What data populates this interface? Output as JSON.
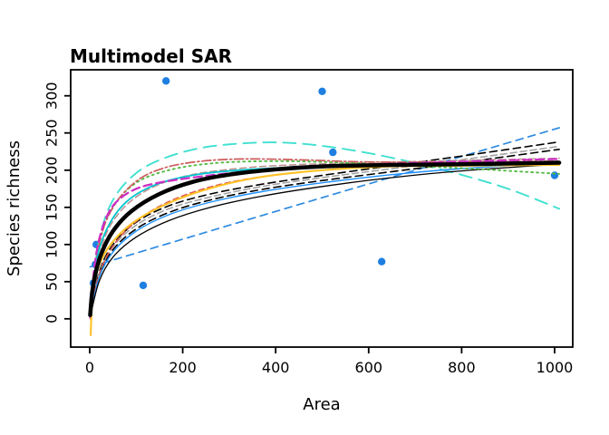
{
  "figure": {
    "window_background": "#FFFFFF",
    "frame_color": "#000000"
  },
  "chart_data": {
    "type": "line",
    "title": "Multimodel SAR",
    "xlabel": "Area",
    "ylabel": "Species richness",
    "xlim": [
      -41,
      1039
    ],
    "ylim": [
      -38,
      335
    ],
    "x_ticks": [
      0,
      200,
      400,
      600,
      800,
      1000
    ],
    "y_ticks": [
      0,
      50,
      100,
      150,
      200,
      250,
      300
    ],
    "grid": false,
    "legend": "none",
    "points": {
      "marker": "filled-circle",
      "color": "#1E7FE0",
      "radius": 4.2,
      "data": [
        [
          14,
          100
        ],
        [
          12,
          73
        ],
        [
          8,
          48
        ],
        [
          115,
          45
        ],
        [
          164,
          320
        ],
        [
          500,
          306
        ],
        [
          523,
          224
        ],
        [
          628,
          77
        ],
        [
          1000,
          193
        ]
      ]
    },
    "series": [
      {
        "name": "curve-linear",
        "color": "#2E8BE0",
        "width": 1.7,
        "dash": "8,6",
        "points": [
          [
            1,
            70
          ],
          [
            500,
            163
          ],
          [
            1010,
            257
          ]
        ]
      },
      {
        "name": "curve-cyan-longdash",
        "color": "#40E0D0",
        "width": 1.9,
        "dash": "14,8",
        "points": [
          [
            1,
            15
          ],
          [
            20,
            105
          ],
          [
            50,
            160
          ],
          [
            100,
            196
          ],
          [
            160,
            216
          ],
          [
            240,
            230
          ],
          [
            330,
            236
          ],
          [
            420,
            237
          ],
          [
            520,
            231
          ],
          [
            640,
            218
          ],
          [
            780,
            197
          ],
          [
            900,
            175
          ],
          [
            1010,
            148
          ]
        ]
      },
      {
        "name": "curve-black-dash-a",
        "color": "#000000",
        "width": 1.6,
        "dash": "8,5",
        "points": [
          [
            1,
            3
          ],
          [
            20,
            62
          ],
          [
            50,
            100
          ],
          [
            100,
            130
          ],
          [
            170,
            152
          ],
          [
            260,
            168
          ],
          [
            370,
            181
          ],
          [
            500,
            193
          ],
          [
            650,
            206
          ],
          [
            800,
            219
          ],
          [
            1010,
            238
          ]
        ]
      },
      {
        "name": "curve-black-dash-b",
        "color": "#000000",
        "width": 1.6,
        "dash": "8,5",
        "points": [
          [
            1,
            3
          ],
          [
            20,
            57
          ],
          [
            50,
            93
          ],
          [
            100,
            121
          ],
          [
            170,
            143
          ],
          [
            260,
            160
          ],
          [
            370,
            174
          ],
          [
            500,
            186
          ],
          [
            650,
            198
          ],
          [
            800,
            210
          ],
          [
            1010,
            228
          ]
        ]
      },
      {
        "name": "curve-gray-dash",
        "color": "#A3A3A3",
        "width": 1.6,
        "dash": "7,4",
        "points": [
          [
            1,
            4
          ],
          [
            20,
            60
          ],
          [
            50,
            97
          ],
          [
            100,
            126
          ],
          [
            170,
            148
          ],
          [
            260,
            164
          ],
          [
            370,
            178
          ],
          [
            500,
            190
          ],
          [
            650,
            202
          ],
          [
            800,
            214
          ],
          [
            1010,
            232
          ]
        ]
      },
      {
        "name": "curve-red-dash",
        "color": "#DB5050",
        "width": 1.5,
        "dash": "6,4",
        "points": [
          [
            1,
            0
          ],
          [
            15,
            48
          ],
          [
            40,
            88
          ],
          [
            80,
            120
          ],
          [
            140,
            148
          ],
          [
            220,
            170
          ],
          [
            320,
            186
          ],
          [
            450,
            197
          ],
          [
            600,
            204
          ],
          [
            800,
            208
          ],
          [
            1010,
            211
          ]
        ]
      },
      {
        "name": "curve-blue-solid",
        "color": "#1E90FF",
        "width": 1.4,
        "dash": "",
        "points": [
          [
            1,
            2
          ],
          [
            20,
            55
          ],
          [
            50,
            90
          ],
          [
            100,
            118
          ],
          [
            170,
            140
          ],
          [
            260,
            157
          ],
          [
            370,
            171
          ],
          [
            500,
            183
          ],
          [
            650,
            194
          ],
          [
            800,
            202
          ],
          [
            1010,
            210
          ]
        ]
      },
      {
        "name": "curve-black-thin",
        "color": "#000000",
        "width": 1.3,
        "dash": "",
        "points": [
          [
            1,
            2
          ],
          [
            20,
            50
          ],
          [
            50,
            83
          ],
          [
            100,
            110
          ],
          [
            170,
            132
          ],
          [
            260,
            150
          ],
          [
            370,
            165
          ],
          [
            500,
            178
          ],
          [
            650,
            190
          ],
          [
            800,
            199
          ],
          [
            1010,
            208
          ]
        ]
      },
      {
        "name": "curve-rosybrown-dash",
        "color": "#BC8F8F",
        "width": 1.5,
        "dash": "7,4",
        "points": [
          [
            1,
            6
          ],
          [
            25,
            95
          ],
          [
            60,
            140
          ],
          [
            120,
            172
          ],
          [
            200,
            191
          ],
          [
            300,
            201
          ],
          [
            430,
            207
          ],
          [
            600,
            210
          ],
          [
            800,
            213
          ],
          [
            1010,
            216
          ]
        ]
      },
      {
        "name": "curve-green-dotted",
        "color": "#55BB44",
        "width": 1.9,
        "dash": "2,4",
        "points": [
          [
            1,
            12
          ],
          [
            20,
            100
          ],
          [
            50,
            150
          ],
          [
            100,
            183
          ],
          [
            170,
            200
          ],
          [
            260,
            209
          ],
          [
            370,
            212
          ],
          [
            500,
            211
          ],
          [
            650,
            207
          ],
          [
            820,
            202
          ],
          [
            1010,
            195
          ]
        ]
      },
      {
        "name": "curve-salmon-dashdot",
        "color": "#CD5C5C",
        "width": 1.7,
        "dash": "10,3,2,3",
        "points": [
          [
            1,
            10
          ],
          [
            20,
            100
          ],
          [
            50,
            150
          ],
          [
            100,
            185
          ],
          [
            160,
            203
          ],
          [
            240,
            212
          ],
          [
            330,
            215
          ],
          [
            450,
            214
          ],
          [
            600,
            211
          ],
          [
            800,
            211
          ],
          [
            1010,
            212
          ]
        ]
      },
      {
        "name": "curve-teal-solid",
        "color": "#00C5CD",
        "width": 1.8,
        "dash": "",
        "points": [
          [
            1,
            8
          ],
          [
            15,
            80
          ],
          [
            40,
            125
          ],
          [
            80,
            158
          ],
          [
            140,
            180
          ],
          [
            220,
            193
          ],
          [
            320,
            200
          ],
          [
            450,
            204
          ],
          [
            600,
            206
          ],
          [
            800,
            207
          ],
          [
            1010,
            208
          ]
        ]
      },
      {
        "name": "curve-magenta-dash",
        "color": "#CC2EC4",
        "width": 2.3,
        "dash": "9,5",
        "points": [
          [
            1,
            2
          ],
          [
            10,
            70
          ],
          [
            25,
            118
          ],
          [
            50,
            152
          ],
          [
            90,
            172
          ],
          [
            140,
            182
          ],
          [
            220,
            190
          ],
          [
            320,
            197
          ],
          [
            450,
            203
          ],
          [
            620,
            208
          ],
          [
            1010,
            215
          ]
        ]
      },
      {
        "name": "curve-gold-solid",
        "color": "#FFC125",
        "width": 2.1,
        "dash": "",
        "points": [
          [
            2,
            -22
          ],
          [
            4,
            10
          ],
          [
            8,
            40
          ],
          [
            20,
            72
          ],
          [
            45,
            100
          ],
          [
            90,
            128
          ],
          [
            160,
            153
          ],
          [
            250,
            174
          ],
          [
            360,
            190
          ],
          [
            500,
            200
          ],
          [
            650,
            205
          ],
          [
            800,
            206
          ],
          [
            1010,
            207
          ]
        ]
      },
      {
        "name": "curve-multimodel-average",
        "color": "#000000",
        "width": 4.5,
        "dash": "",
        "points": [
          [
            1,
            5
          ],
          [
            5,
            35
          ],
          [
            12,
            60
          ],
          [
            25,
            88
          ],
          [
            50,
            118
          ],
          [
            90,
            145
          ],
          [
            150,
            168
          ],
          [
            220,
            184
          ],
          [
            300,
            194
          ],
          [
            400,
            201
          ],
          [
            500,
            205
          ],
          [
            650,
            207
          ],
          [
            800,
            208
          ],
          [
            1010,
            210
          ]
        ]
      }
    ]
  }
}
